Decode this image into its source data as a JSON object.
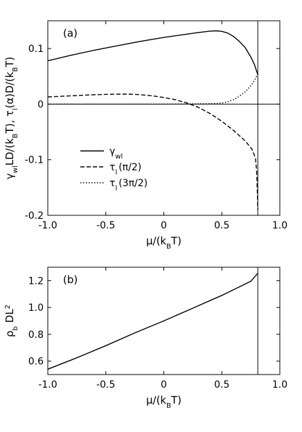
{
  "chart_data": [
    {
      "type": "line",
      "panel_label": "(a)",
      "xlabel": "μ/(k_BT)",
      "ylabel": "γ_wl LD/(k_BT), τ_l(α)D/(k_BT)",
      "xlim": [
        -1.0,
        1.0
      ],
      "ylim": [
        -0.2,
        0.15
      ],
      "xticks": [
        -1.0,
        -0.5,
        0.0,
        0.5,
        1.0
      ],
      "xtick_labels": [
        "-1.0",
        "-0.5",
        "0",
        "0.5",
        "1.0"
      ],
      "yticks": [
        -0.2,
        -0.1,
        0.0,
        0.1
      ],
      "ytick_labels": [
        "-0.2",
        "-0.1",
        "0",
        "0.1"
      ],
      "grid": false,
      "legend_position": "lower-left",
      "reference_lines": {
        "horizontal_y": 0.0,
        "vertical_x": 0.81
      },
      "series": [
        {
          "name": "γ_wl",
          "style": "solid",
          "x": [
            -1.0,
            -0.8,
            -0.6,
            -0.4,
            -0.2,
            0.0,
            0.2,
            0.3,
            0.4,
            0.45,
            0.5,
            0.55,
            0.6,
            0.65,
            0.7,
            0.75,
            0.78,
            0.81
          ],
          "y": [
            0.078,
            0.088,
            0.097,
            0.105,
            0.113,
            0.12,
            0.126,
            0.129,
            0.1315,
            0.132,
            0.131,
            0.128,
            0.122,
            0.113,
            0.102,
            0.085,
            0.072,
            0.053
          ]
        },
        {
          "name": "τ_l(π/2)",
          "style": "dashed",
          "x": [
            -1.0,
            -0.8,
            -0.6,
            -0.4,
            -0.3,
            -0.2,
            -0.1,
            0.0,
            0.1,
            0.2,
            0.3,
            0.4,
            0.5,
            0.6,
            0.7,
            0.76,
            0.79,
            0.8,
            0.805,
            0.81
          ],
          "y": [
            0.013,
            0.015,
            0.017,
            0.018,
            0.018,
            0.017,
            0.015,
            0.012,
            0.008,
            0.002,
            -0.006,
            -0.017,
            -0.031,
            -0.047,
            -0.066,
            -0.081,
            -0.097,
            -0.12,
            -0.15,
            -0.19
          ]
        },
        {
          "name": "τ_l(3π/2)",
          "style": "dotted",
          "x": [
            -1.0,
            -0.5,
            0.0,
            0.3,
            0.45,
            0.5,
            0.55,
            0.6,
            0.65,
            0.7,
            0.75,
            0.78,
            0.81
          ],
          "y": [
            0.0,
            0.0,
            0.0,
            0.0005,
            0.001,
            0.002,
            0.004,
            0.008,
            0.014,
            0.022,
            0.033,
            0.042,
            0.055
          ]
        }
      ]
    },
    {
      "type": "line",
      "panel_label": "(b)",
      "xlabel": "μ/(k_BT)",
      "ylabel": "ρ_b DL²",
      "xlim": [
        -1.0,
        1.0
      ],
      "ylim": [
        0.5,
        1.3
      ],
      "xticks": [
        -1.0,
        -0.5,
        0.0,
        0.5,
        1.0
      ],
      "xtick_labels": [
        "-1.0",
        "-0.5",
        "0",
        "0.5",
        "1.0"
      ],
      "yticks": [
        0.6,
        0.8,
        1.0,
        1.2
      ],
      "ytick_labels": [
        "0.6",
        "0.8",
        "1.0",
        "1.2"
      ],
      "grid": false,
      "reference_lines": {
        "vertical_x": 0.81
      },
      "series": [
        {
          "style": "solid",
          "x": [
            -1.0,
            -0.75,
            -0.5,
            -0.25,
            0.0,
            0.25,
            0.5,
            0.75,
            0.81
          ],
          "y": [
            0.54,
            0.625,
            0.715,
            0.81,
            0.9,
            0.995,
            1.09,
            1.195,
            1.255
          ]
        }
      ]
    }
  ],
  "legend": [
    {
      "main": "γ",
      "sub": "wl",
      "after": "",
      "style": "solid"
    },
    {
      "main": "τ",
      "sub": "l",
      "after": "(π/2)",
      "style": "dashed"
    },
    {
      "main": "τ",
      "sub": "l",
      "after": "(3π/2)",
      "style": "dotted"
    }
  ],
  "labels": {
    "a": {
      "xlabel": {
        "main": "μ/(k",
        "sub": "B",
        "after": "T)"
      },
      "ylabel": [
        {
          "t": "γ",
          "s": "n"
        },
        {
          "t": "wl",
          "s": "sub"
        },
        {
          "t": "LD/(k",
          "s": "n"
        },
        {
          "t": "B",
          "s": "sub"
        },
        {
          "t": "T), τ",
          "s": "n"
        },
        {
          "t": "l",
          "s": "sub"
        },
        {
          "t": "(α)D/(k",
          "s": "n"
        },
        {
          "t": "B",
          "s": "sub"
        },
        {
          "t": "T)",
          "s": "n"
        }
      ]
    },
    "b": {
      "xlabel": {
        "main": "μ/(k",
        "sub": "B",
        "after": "T)"
      },
      "ylabel": [
        {
          "t": "ρ",
          "s": "n"
        },
        {
          "t": "b",
          "s": "sub"
        },
        {
          "t": " DL",
          "s": "n"
        },
        {
          "t": "2",
          "s": "sup"
        }
      ]
    }
  }
}
